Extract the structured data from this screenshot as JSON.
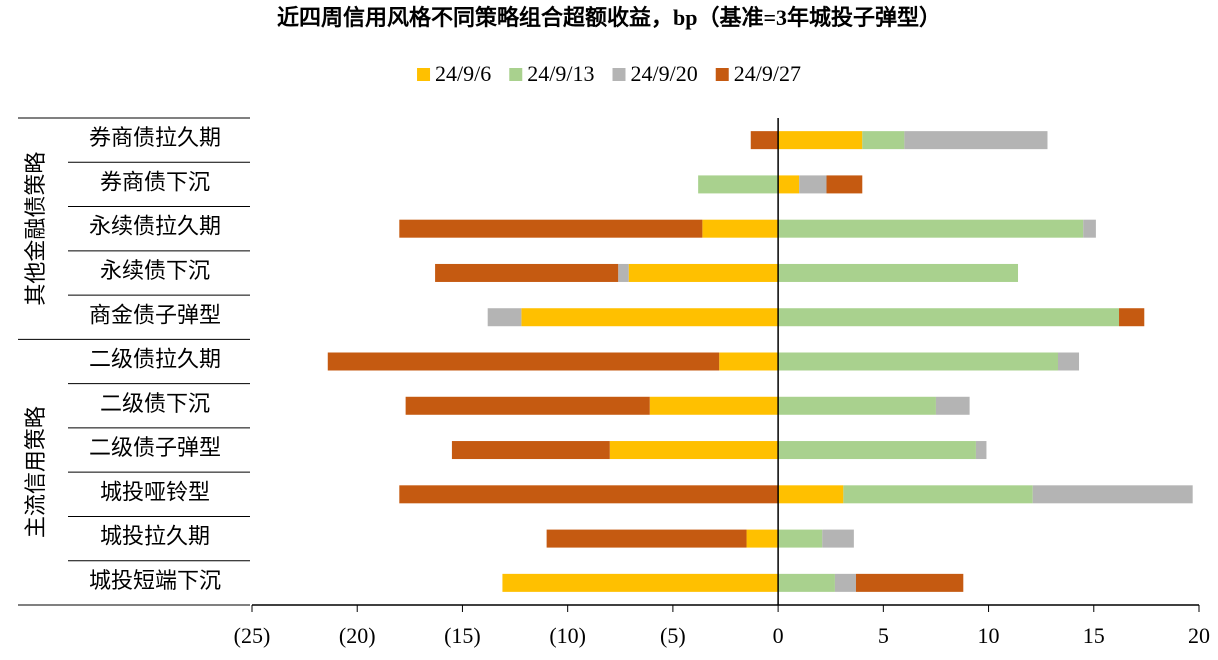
{
  "chart_data": {
    "type": "stacked-hbar",
    "title": "近四周信用风格不同策略组合超额收益，bp（基准=3年城投子弹型）",
    "groups": [
      {
        "name": "其他金融债策略",
        "categories": [
          "券商债拉久期",
          "券商债下沉",
          "永续债拉久期",
          "永续债下沉",
          "商金债子弹型"
        ]
      },
      {
        "name": "主流信用策略",
        "categories": [
          "二级债拉久期",
          "二级债下沉",
          "二级债子弹型",
          "城投哑铃型",
          "城投拉久期",
          "城投短端下沉"
        ]
      }
    ],
    "series": [
      {
        "name": "24/9/6",
        "color": "#ffc000",
        "values": [
          4.0,
          1.0,
          -3.6,
          -7.1,
          -12.2,
          -2.8,
          -6.1,
          -8.0,
          3.1,
          -1.5,
          -13.1
        ]
      },
      {
        "name": "24/9/13",
        "color": "#a9d18e",
        "values": [
          2.0,
          -3.8,
          14.5,
          11.4,
          16.2,
          13.3,
          7.5,
          9.4,
          9.0,
          2.1,
          2.7
        ]
      },
      {
        "name": "24/9/20",
        "color": "#b4b4b4",
        "values": [
          6.8,
          1.3,
          0.6,
          -0.5,
          -1.6,
          1.0,
          1.6,
          0.5,
          7.6,
          1.5,
          1.0
        ]
      },
      {
        "name": "24/9/27",
        "color": "#c55a11",
        "values": [
          -1.3,
          1.7,
          -14.4,
          -8.7,
          1.2,
          -18.6,
          -11.6,
          -7.5,
          -18.0,
          -9.5,
          5.1
        ]
      }
    ],
    "xlim": [
      -25,
      20
    ],
    "xticks": [
      {
        "value": -25,
        "label": "(25)"
      },
      {
        "value": -20,
        "label": "(20)"
      },
      {
        "value": -15,
        "label": "(15)"
      },
      {
        "value": -10,
        "label": "(10)"
      },
      {
        "value": -5,
        "label": "(5)"
      },
      0,
      5,
      10,
      15,
      20
    ],
    "negative_tick_color": "#ff0000",
    "legend": "top"
  }
}
